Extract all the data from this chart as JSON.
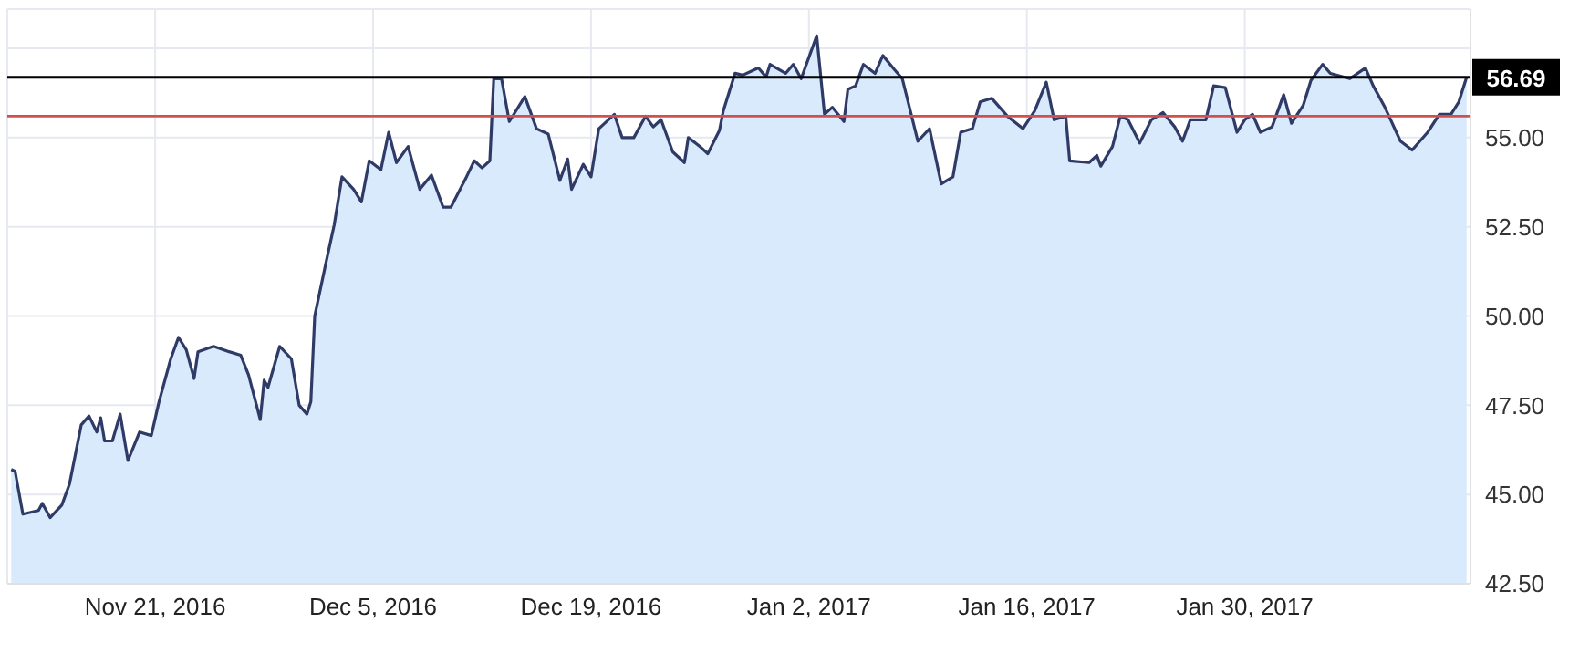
{
  "chart_data": {
    "type": "area",
    "x": [
      "2016-11-11T18:00",
      "2016-11-12T00:00",
      "2016-11-12T12:00",
      "2016-11-13T12:00",
      "2016-11-13T18:00",
      "2016-11-14T06:00",
      "2016-11-15T00:00",
      "2016-11-15T12:00",
      "2016-11-16T06:00",
      "2016-11-16T18:00",
      "2016-11-17T06:00",
      "2016-11-17T12:00",
      "2016-11-17T18:00",
      "2016-11-18T06:00",
      "2016-11-18T18:00",
      "2016-11-19T06:00",
      "2016-11-20T00:00",
      "2016-11-20T18:00",
      "2016-11-21T06:00",
      "2016-11-22T00:00",
      "2016-11-22T12:00",
      "2016-11-23T00:00",
      "2016-11-23T12:00",
      "2016-11-23T18:00",
      "2016-11-24T18:00",
      "2016-11-25T18:00",
      "2016-11-26T12:00",
      "2016-11-27T00:00",
      "2016-11-27T18:00",
      "2016-11-28T00:00",
      "2016-11-28T06:00",
      "2016-11-29T00:00",
      "2016-11-29T18:00",
      "2016-11-30T06:00",
      "2016-11-30T18:00",
      "2016-12-01T00:00",
      "2016-12-01T06:00",
      "2016-12-02T00:00",
      "2016-12-02T12:00",
      "2016-12-03T00:00",
      "2016-12-03T18:00",
      "2016-12-04T06:00",
      "2016-12-04T18:00",
      "2016-12-05T12:00",
      "2016-12-06T00:00",
      "2016-12-06T12:00",
      "2016-12-07T06:00",
      "2016-12-08T00:00",
      "2016-12-08T18:00",
      "2016-12-09T12:00",
      "2016-12-10T00:00",
      "2016-12-11T00:00",
      "2016-12-11T12:00",
      "2016-12-12T00:00",
      "2016-12-12T12:00",
      "2016-12-12T18:00",
      "2016-12-13T06:00",
      "2016-12-13T18:00",
      "2016-12-14T18:00",
      "2016-12-15T12:00",
      "2016-12-16T06:00",
      "2016-12-17T00:00",
      "2016-12-17T12:00",
      "2016-12-17T18:00",
      "2016-12-18T12:00",
      "2016-12-19T00:00",
      "2016-12-19T12:00",
      "2016-12-20T12:00",
      "2016-12-21T00:00",
      "2016-12-21T18:00",
      "2016-12-22T12:00",
      "2016-12-23T00:00",
      "2016-12-23T12:00",
      "2016-12-24T06:00",
      "2016-12-25T00:00",
      "2016-12-25T06:00",
      "2016-12-26T00:00",
      "2016-12-26T12:00",
      "2016-12-27T06:00",
      "2016-12-27T12:00",
      "2016-12-28T06:00",
      "2016-12-28T18:00",
      "2016-12-29T18:00",
      "2016-12-30T06:00",
      "2016-12-30T12:00",
      "2016-12-31T12:00",
      "2017-01-01T00:00",
      "2017-01-01T12:00",
      "2017-01-02T12:00",
      "2017-01-03T00:00",
      "2017-01-03T12:00",
      "2017-01-04T06:00",
      "2017-01-04T12:00",
      "2017-01-05T00:00",
      "2017-01-05T12:00",
      "2017-01-06T06:00",
      "2017-01-06T18:00",
      "2017-01-07T12:00",
      "2017-01-08T00:00",
      "2017-01-09T00:00",
      "2017-01-09T18:00",
      "2017-01-10T12:00",
      "2017-01-11T06:00",
      "2017-01-11T18:00",
      "2017-01-12T12:00",
      "2017-01-13T00:00",
      "2017-01-13T18:00",
      "2017-01-14T18:00",
      "2017-01-15T18:00",
      "2017-01-16T12:00",
      "2017-01-17T06:00",
      "2017-01-17T18:00",
      "2017-01-18T12:00",
      "2017-01-18T18:00",
      "2017-01-20T00:00",
      "2017-01-20T12:00",
      "2017-01-20T18:00",
      "2017-01-21T12:00",
      "2017-01-22T00:00",
      "2017-01-22T12:00",
      "2017-01-23T06:00",
      "2017-01-24T00:00",
      "2017-01-24T18:00",
      "2017-01-25T12:00",
      "2017-01-26T00:00",
      "2017-01-26T12:00",
      "2017-01-27T12:00",
      "2017-01-28T00:00",
      "2017-01-28T18:00",
      "2017-01-29T12:00",
      "2017-01-30T00:00",
      "2017-01-30T12:00",
      "2017-01-31T00:00",
      "2017-01-31T18:00",
      "2017-02-01T12:00",
      "2017-02-02T00:00",
      "2017-02-02T18:00",
      "2017-02-03T06:00",
      "2017-02-04T00:00",
      "2017-02-04T12:00",
      "2017-02-05T18:00",
      "2017-02-06T18:00",
      "2017-02-07T06:00",
      "2017-02-08T00:00",
      "2017-02-09T00:00",
      "2017-02-09T18:00",
      "2017-02-10T18:00",
      "2017-02-11T12:00",
      "2017-02-12T06:00",
      "2017-02-12T18:00",
      "2017-02-13T06:00"
    ],
    "series": [
      {
        "color": "#2f3b66",
        "values": [
          45.7,
          45.65,
          44.45,
          44.55,
          44.75,
          44.35,
          44.7,
          45.3,
          46.95,
          47.2,
          46.75,
          47.15,
          46.5,
          46.5,
          47.25,
          45.95,
          46.75,
          46.65,
          47.6,
          48.8,
          49.4,
          49.05,
          48.25,
          49.0,
          49.15,
          49.0,
          48.9,
          48.35,
          47.1,
          48.2,
          48.0,
          49.15,
          48.8,
          47.5,
          47.25,
          47.6,
          50.0,
          51.55,
          52.55,
          53.9,
          53.55,
          53.2,
          54.35,
          54.1,
          55.15,
          54.3,
          54.75,
          53.55,
          53.95,
          53.05,
          53.05,
          53.9,
          54.35,
          54.15,
          54.35,
          56.65,
          56.65,
          55.45,
          56.15,
          55.25,
          55.1,
          53.8,
          54.4,
          53.55,
          54.25,
          53.9,
          55.25,
          55.65,
          55.0,
          55.0,
          55.6,
          55.3,
          55.5,
          54.6,
          54.3,
          55.0,
          54.75,
          54.55,
          55.2,
          55.75,
          56.8,
          56.75,
          56.95,
          56.7,
          57.05,
          56.8,
          57.05,
          56.65,
          57.85,
          55.65,
          55.85,
          55.45,
          56.35,
          56.45,
          57.05,
          56.8,
          57.3,
          56.9,
          56.65,
          54.9,
          55.25,
          53.7,
          53.9,
          55.15,
          55.25,
          56.0,
          56.1,
          55.6,
          55.25,
          55.75,
          56.55,
          55.5,
          55.6,
          54.35,
          54.3,
          54.5,
          54.2,
          54.75,
          55.6,
          55.5,
          54.85,
          55.5,
          55.7,
          55.3,
          54.9,
          55.5,
          55.5,
          56.45,
          56.4,
          55.15,
          55.5,
          55.65,
          55.15,
          55.3,
          56.2,
          55.4,
          55.9,
          56.6,
          57.05,
          56.8,
          56.65,
          56.95,
          56.45,
          55.85,
          54.9,
          54.65,
          55.15,
          55.65,
          55.65,
          56.0,
          56.69
        ]
      }
    ],
    "xlim": [
      "2016-11-11T12:00",
      "2017-02-13T12:00"
    ],
    "xticks": [
      {
        "value": "2016-11-21",
        "label": "Nov 21, 2016"
      },
      {
        "value": "2016-12-05",
        "label": "Dec 5, 2016"
      },
      {
        "value": "2016-12-19",
        "label": "Dec 19, 2016"
      },
      {
        "value": "2017-01-02",
        "label": "Jan 2, 2017"
      },
      {
        "value": "2017-01-16",
        "label": "Jan 16, 2017"
      },
      {
        "value": "2017-01-30",
        "label": "Jan 30, 2017"
      }
    ],
    "ylim": [
      42.5,
      58.6
    ],
    "yticks": [
      {
        "value": 42.5,
        "label": "42.50"
      },
      {
        "value": 45,
        "label": "45.00"
      },
      {
        "value": 47.5,
        "label": "47.50"
      },
      {
        "value": 50,
        "label": "50.00"
      },
      {
        "value": 52.5,
        "label": "52.50"
      },
      {
        "value": 55,
        "label": "55.00"
      },
      {
        "value": 57.5,
        "label": null
      }
    ],
    "ref_lines": [
      {
        "axis": "y",
        "value": 56.69,
        "label": "56.69",
        "color": "#000000"
      },
      {
        "axis": "y",
        "value": 55.6,
        "color": "#d0504f"
      }
    ],
    "grid": true,
    "marker": "none",
    "line_style": "solid"
  }
}
